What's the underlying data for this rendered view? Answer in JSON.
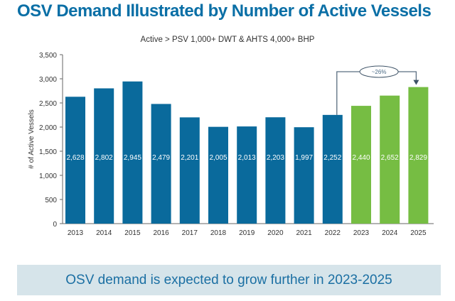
{
  "title": "OSV Demand Illustrated by Number of Active Vessels",
  "banner": "OSV demand is expected to grow further in 2023-2025",
  "chart_data": {
    "type": "bar",
    "title": "Active > PSV 1,000+ DWT & AHTS 4,000+ BHP",
    "xlabel": "",
    "ylabel": "# of Active Vessels",
    "ylim": [
      0,
      3500
    ],
    "yticks": [
      0,
      500,
      1000,
      1500,
      2000,
      2500,
      3000,
      3500
    ],
    "ytick_labels": [
      "0",
      "500",
      "1,000",
      "1,500",
      "2,000",
      "2,500",
      "3,000",
      "3,500"
    ],
    "categories": [
      "2013",
      "2014",
      "2015",
      "2016",
      "2017",
      "2018",
      "2019",
      "2020",
      "2021",
      "2022",
      "2023",
      "2024",
      "2025"
    ],
    "values": [
      2628,
      2802,
      2945,
      2479,
      2201,
      2005,
      2013,
      2203,
      1997,
      2252,
      2440,
      2652,
      2829
    ],
    "data_labels": [
      "2,628",
      "2,802",
      "2,945",
      "2,479",
      "2,201",
      "2,005",
      "2,013",
      "2,203",
      "1,997",
      "2,252",
      "2,440",
      "2,652",
      "2,829"
    ],
    "bar_colors": {
      "actual": "#0a6a9c",
      "forecast": "#76bd43"
    },
    "forecast_from": "2023",
    "annotation": "~26%",
    "grid": false,
    "legend": "none"
  }
}
